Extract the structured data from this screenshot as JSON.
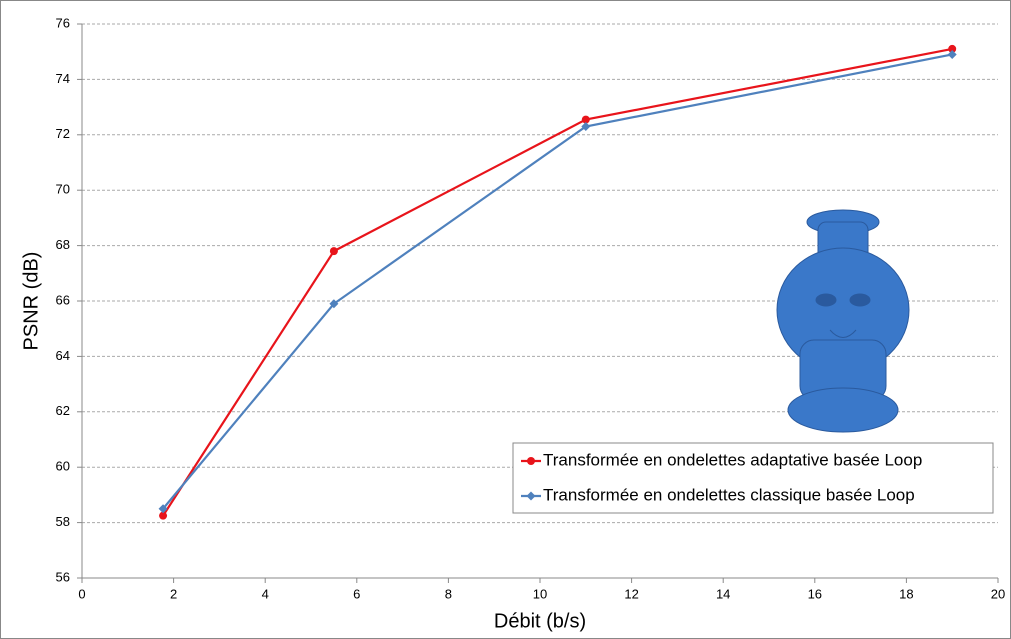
{
  "chart_data": {
    "type": "line",
    "xlabel": "Débit (b/s)",
    "ylabel": "PSNR (dB)",
    "x": [
      1.77,
      5.5,
      11,
      19
    ],
    "series": [
      {
        "name": "Transformée en ondelettes adaptative basée Loop",
        "color": "#e8141b",
        "marker": "circle",
        "values": [
          58.25,
          67.8,
          72.55,
          75.1
        ]
      },
      {
        "name": "Transformée en ondelettes classique basée Loop",
        "color": "#4f81bd",
        "marker": "diamond",
        "values": [
          58.5,
          65.9,
          72.3,
          74.9
        ]
      }
    ],
    "xlim": [
      0,
      20
    ],
    "xticks": [
      0,
      2,
      4,
      6,
      8,
      10,
      12,
      14,
      16,
      18,
      20
    ],
    "ylim": [
      56,
      76
    ],
    "yticks": [
      56,
      58,
      60,
      62,
      64,
      66,
      68,
      70,
      72,
      74,
      76
    ],
    "grid": true,
    "legend": "lower right"
  }
}
